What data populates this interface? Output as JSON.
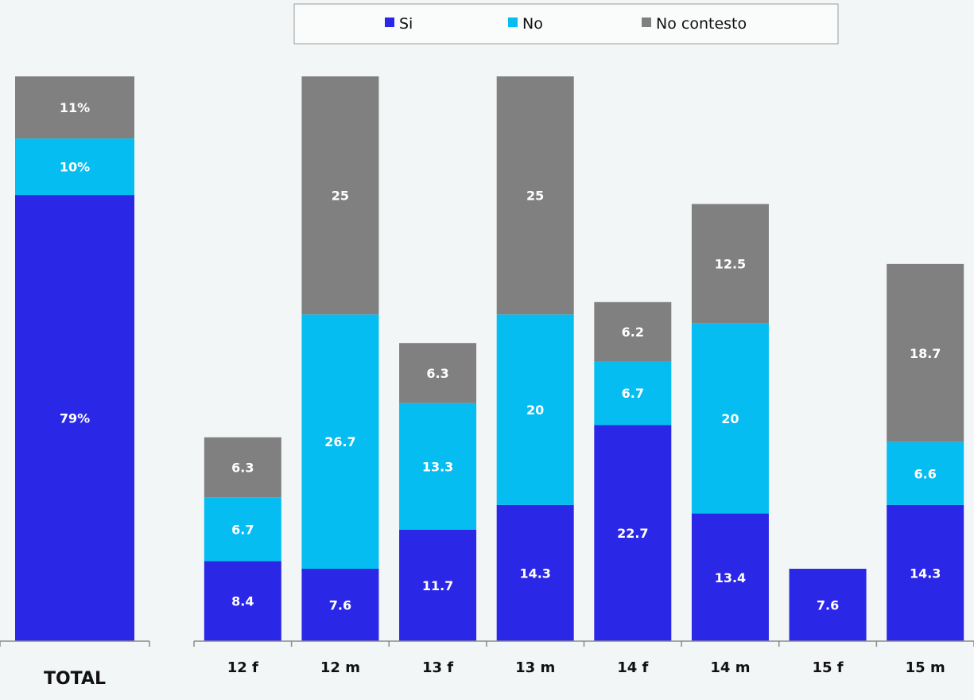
{
  "chart_data": [
    {
      "type": "bar",
      "stacked": true,
      "categories": [
        "TOTAL"
      ],
      "series": [
        {
          "name": "Si",
          "values": [
            79
          ],
          "labels": [
            "79%"
          ]
        },
        {
          "name": "No",
          "values": [
            10
          ],
          "labels": [
            "10%"
          ]
        },
        {
          "name": "No contesto",
          "values": [
            11
          ],
          "labels": [
            "11%"
          ]
        }
      ],
      "ylim": [
        0,
        100
      ],
      "grid": false
    },
    {
      "type": "bar",
      "stacked": true,
      "categories": [
        "12  f",
        "12  m",
        "13  f",
        "13 m",
        "14  f",
        "14  m",
        "15  f",
        "15  m"
      ],
      "series": [
        {
          "name": "Si",
          "values": [
            8.4,
            7.6,
            11.7,
            14.3,
            22.7,
            13.4,
            7.6,
            14.3
          ],
          "labels": [
            "8.4",
            "7.6",
            "11.7",
            "14.3",
            "22.7",
            "13.4",
            "7.6",
            "14.3"
          ]
        },
        {
          "name": "No",
          "values": [
            6.7,
            26.7,
            13.3,
            20,
            6.7,
            20,
            0,
            6.6
          ],
          "labels": [
            "6.7",
            "26.7",
            "13.3",
            "20",
            "6.7",
            "20",
            "",
            "6.6"
          ]
        },
        {
          "name": "No contesto",
          "values": [
            6.3,
            25,
            6.3,
            25,
            6.2,
            12.5,
            0,
            18.7
          ],
          "labels": [
            "6.3",
            "25",
            "6.3",
            "25",
            "6.2",
            "12.5",
            "",
            "18.7"
          ]
        }
      ],
      "ylim": [
        0,
        59.3
      ],
      "grid": false
    }
  ],
  "legend": {
    "position": "top-center",
    "items": [
      {
        "label": "Si",
        "color": "#2b27e6"
      },
      {
        "label": "No",
        "color": "#05bdf0"
      },
      {
        "label": "No contesto",
        "color": "#808080"
      }
    ]
  },
  "colors": {
    "si": "#2b27e6",
    "no": "#05bdf0",
    "no_contesto": "#808080",
    "background": "#f3f6f6"
  }
}
